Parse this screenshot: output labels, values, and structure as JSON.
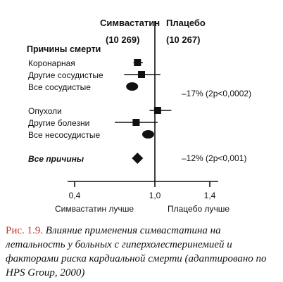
{
  "headers": {
    "left": "Симвастатин",
    "left_n": "(10 269)",
    "right": "Плацебо",
    "right_n": "(10 267)",
    "section": "Причины смерти"
  },
  "chart_data": {
    "type": "forest",
    "xlim": [
      0.4,
      1.4
    ],
    "ticks": [
      "0,4",
      "1,0",
      "1,4"
    ],
    "tick_values": [
      0.4,
      1.0,
      1.4
    ],
    "reference_line": 1.0,
    "axis_notes": {
      "left": "Симвастатин лучше",
      "right": "Плацебо лучше"
    },
    "rows": [
      {
        "label": "Коронарная",
        "estimate": 0.87,
        "low": 0.84,
        "high": 0.91,
        "marker": "square"
      },
      {
        "label": "Другие сосудистые",
        "estimate": 0.9,
        "low": 0.77,
        "high": 1.04,
        "marker": "square"
      },
      {
        "label": "Все сосудистые",
        "estimate": 0.83,
        "low": 0.83,
        "high": 0.83,
        "marker": "ellipse"
      },
      {
        "label": "Опухоли",
        "estimate": 1.02,
        "low": 0.96,
        "high": 1.12,
        "marker": "square"
      },
      {
        "label": "Другие болезни",
        "estimate": 0.86,
        "low": 0.7,
        "high": 1.02,
        "marker": "square"
      },
      {
        "label": "Все несосудистые",
        "estimate": 0.95,
        "low": 0.95,
        "high": 0.95,
        "marker": "ellipse"
      },
      {
        "label": "Все причины",
        "estimate": 0.87,
        "low": 0.87,
        "high": 0.87,
        "marker": "diamond"
      }
    ],
    "annotations": [
      {
        "text": "–17% (2р<0,0002)",
        "row": 2
      },
      {
        "text": "–12% (2р<0,001)",
        "row": 6
      }
    ]
  },
  "caption": {
    "figure": "Рис. 1.9.",
    "text": "Влияние применения симвастатина на летальность у больных с гиперхолестеринемией и факторами риска кардиальной смерти (адаптировано по HPS Group, 2000)"
  }
}
